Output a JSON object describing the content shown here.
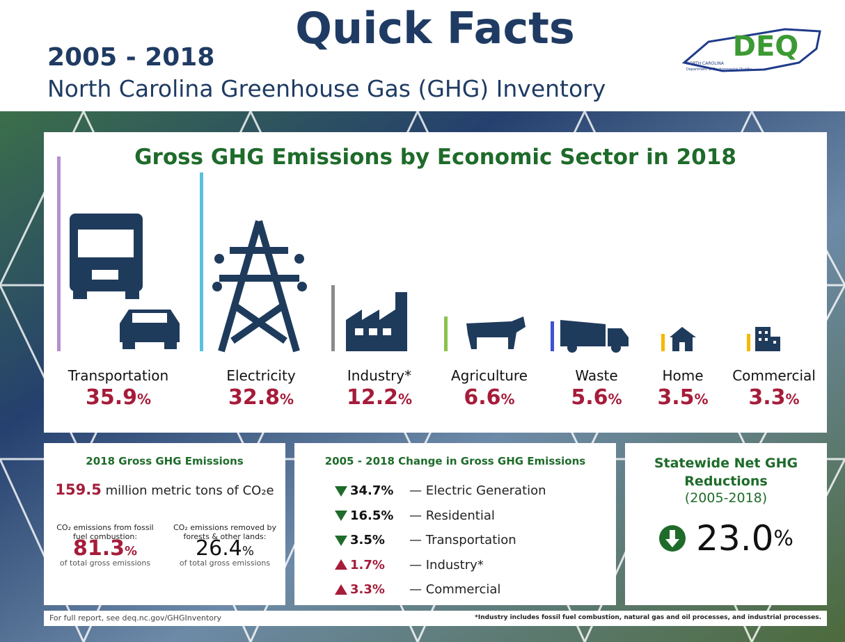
{
  "header": {
    "title": "Quick Facts",
    "years": "2005 - 2018",
    "subtitle": "North Carolina Greenhouse Gas (GHG) Inventory",
    "logo": "DEQ",
    "logo_state": "NORTH CAROLINA",
    "logo_dept": "Department of Environmental Quality"
  },
  "sectors": {
    "title": "Gross GHG Emissions by Economic Sector in 2018",
    "items": [
      {
        "name": "Transportation",
        "value": "35.9",
        "unit": "%"
      },
      {
        "name": "Electricity",
        "value": "32.8",
        "unit": "%"
      },
      {
        "name": "Industry*",
        "value": "12.2",
        "unit": "%"
      },
      {
        "name": "Agriculture",
        "value": "6.6",
        "unit": "%"
      },
      {
        "name": "Waste",
        "value": "5.6",
        "unit": "%"
      },
      {
        "name": "Home",
        "value": "3.5",
        "unit": "%"
      },
      {
        "name": "Commercial",
        "value": "3.3",
        "unit": "%"
      }
    ]
  },
  "gross": {
    "title": "2018 Gross GHG Emissions",
    "value": "159.5",
    "text": "million metric tons of CO₂e",
    "left": {
      "caption": "CO₂ emissions from fossil fuel combustion:",
      "value": "81.3",
      "unit": "%",
      "note": "of total gross emissions"
    },
    "right": {
      "caption": "CO₂ emissions removed by forests & other lands:",
      "value": "26.4",
      "unit": "%",
      "note": "of total gross emissions"
    }
  },
  "change": {
    "title": "2005 - 2018 Change in Gross GHG Emissions",
    "items": [
      {
        "direction": "down",
        "value": "34.7%",
        "label": "— Electric Generation"
      },
      {
        "direction": "down",
        "value": "16.5%",
        "label": "— Residential"
      },
      {
        "direction": "down",
        "value": "3.5%",
        "label": "— Transportation"
      },
      {
        "direction": "up",
        "value": "1.7%",
        "label": "— Industry*"
      },
      {
        "direction": "up",
        "value": "3.3%",
        "label": "— Commercial"
      }
    ]
  },
  "net": {
    "title": "Statewide Net GHG Reductions",
    "years": "(2005-2018)",
    "value": "23.0",
    "unit": "%"
  },
  "footer": {
    "left": "For full report, see deq.nc.gov/GHGInventory",
    "right": "*Industry includes fossil fuel combustion, natural gas and oil processes, and industrial processes."
  }
}
